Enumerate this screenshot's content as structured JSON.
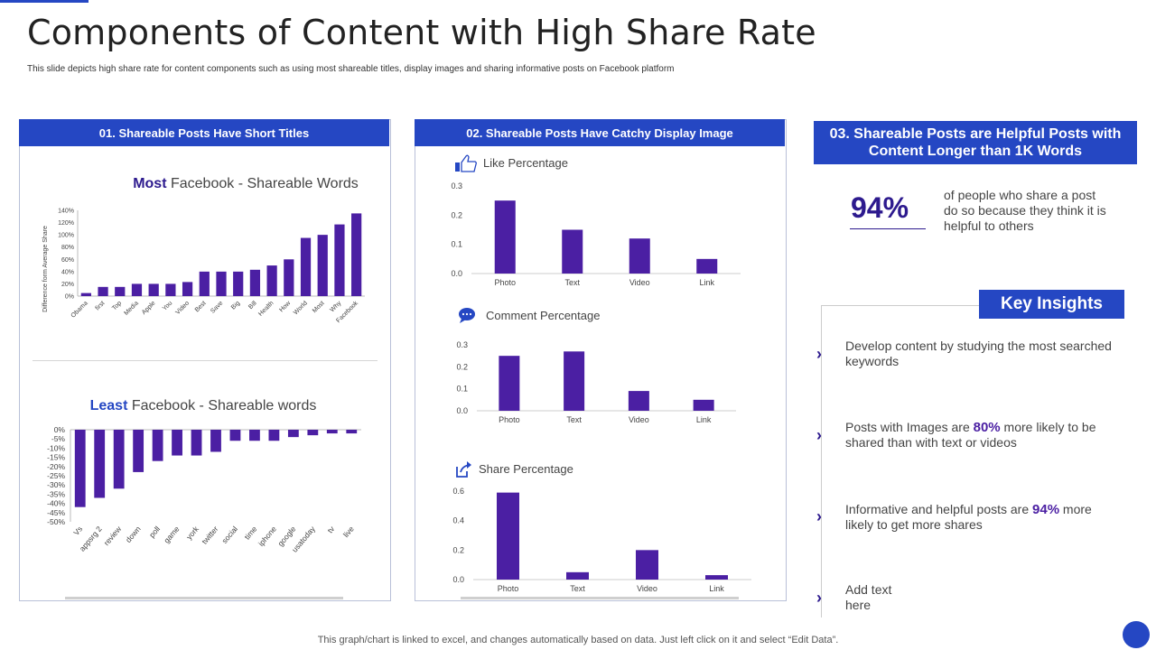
{
  "page": {
    "title": "Components of Content with High Share Rate",
    "subtitle": "This slide depicts high share rate for content components such as using most shareable titles, display images and sharing informative posts on Facebook platform",
    "footer": "This graph/chart is linked to excel,  and changes automatically based on data. Just left click on it and select “Edit Data”."
  },
  "panels": {
    "p1_title": "01. Shareable Posts Have Short Titles",
    "p2_title": "02. Shareable Posts Have Catchy Display Image",
    "p3_title": "03. Shareable Posts are Helpful Posts with Content Longer than 1K Words"
  },
  "stat": {
    "value": "94%",
    "text": "of people who share a post do so because they think it is helpful to others"
  },
  "insights": {
    "title": "Key Insights",
    "i1": "Develop content by studying the most searched keywords",
    "i2_a": "Posts with Images are ",
    "i2_b": "80%",
    "i2_c": " more likely to be shared than with text or videos",
    "i3_a": "Informative and helpful posts are ",
    "i3_b": "94%",
    "i3_c": " more likely to get more shares",
    "i4": "Add text here"
  },
  "colors": {
    "accent": "#2547c3",
    "bar": "#4b1fa3",
    "dark": "#2d1a8e"
  },
  "icons": {
    "like": "thumbs-up-icon",
    "comment": "chat-bubble-icon",
    "share": "share-icon"
  },
  "chart_data": [
    {
      "type": "bar",
      "title_bold": "Most",
      "title": " Facebook - Shareable Words",
      "ylabel": "Difference form Average Share",
      "categories": [
        "Obama",
        "first",
        "Top",
        "Media",
        "Apple",
        "You",
        "Video",
        "Best",
        "Save",
        "Big",
        "Bill",
        "Health",
        "How",
        "World",
        "Most",
        "Why",
        "Facebook"
      ],
      "values": [
        5,
        15,
        15,
        20,
        20,
        20,
        23,
        40,
        40,
        40,
        43,
        50,
        60,
        95,
        100,
        117,
        135
      ],
      "ylim": [
        0,
        140
      ],
      "yticks": [
        "0%",
        "20%",
        "40%",
        "60%",
        "80%",
        "100%",
        "120%",
        "140%"
      ]
    },
    {
      "type": "bar",
      "title_bold": "Least",
      "title": " Facebook - Shareable words",
      "categories": [
        "Vs",
        "appsrg 2",
        "review",
        "down",
        "poll",
        "game",
        "york",
        "twitter",
        "social",
        "time",
        "iphone",
        "google",
        "usatoday",
        "tv",
        "live"
      ],
      "values": [
        -42,
        -37,
        -32,
        -23,
        -17,
        -14,
        -14,
        -12,
        -6,
        -6,
        -6,
        -4,
        -3,
        -2,
        -2
      ],
      "ylim": [
        -50,
        0
      ],
      "yticks": [
        "0%",
        "-5%",
        "-10%",
        "-15%",
        "-20%",
        "-25%",
        "-30%",
        "-35%",
        "-40%",
        "-45%",
        "-50%"
      ]
    },
    {
      "type": "bar",
      "title": "Like Percentage",
      "categories": [
        "Photo",
        "Text",
        "Video",
        "Link"
      ],
      "values": [
        0.25,
        0.15,
        0.12,
        0.05
      ],
      "ylim": [
        0,
        0.3
      ],
      "yticks": [
        "0.0",
        "0.1",
        "0.2",
        "0.3"
      ]
    },
    {
      "type": "bar",
      "title": "Comment Percentage",
      "categories": [
        "Photo",
        "Text",
        "Video",
        "Link"
      ],
      "values": [
        0.25,
        0.27,
        0.09,
        0.05
      ],
      "ylim": [
        0,
        0.3
      ],
      "yticks": [
        "0.0",
        "0.1",
        "0.2",
        "0.3"
      ]
    },
    {
      "type": "bar",
      "title": "Share Percentage",
      "categories": [
        "Photo",
        "Text",
        "Video",
        "Link"
      ],
      "values": [
        0.59,
        0.05,
        0.2,
        0.03
      ],
      "ylim": [
        0,
        0.6
      ],
      "yticks": [
        "0.0",
        "0.2",
        "0.4",
        "0.6"
      ]
    }
  ]
}
